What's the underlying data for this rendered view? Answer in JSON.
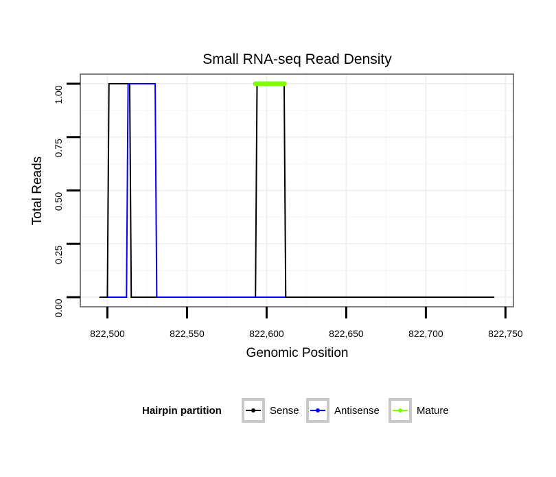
{
  "chart_data": {
    "type": "line",
    "title": "Small RNA-seq Read Density",
    "xlabel": "Genomic Position",
    "ylabel": "Total Reads",
    "xlim": [
      822483,
      822755
    ],
    "ylim": [
      -0.045,
      1.045
    ],
    "x_ticks": [
      822500,
      822550,
      822600,
      822650,
      822700,
      822750
    ],
    "x_tick_labels": [
      "822,500",
      "822,550",
      "822,600",
      "822,650",
      "822,700",
      "822,750"
    ],
    "y_ticks": [
      0,
      0.25,
      0.5,
      0.75,
      1
    ],
    "y_tick_labels": [
      "0.00",
      "0.25",
      "0.50",
      "0.75",
      "1.00"
    ],
    "grid": true,
    "legend_position": "bottom",
    "legend_title": "Hairpin partition",
    "series": [
      {
        "name": "Sense",
        "color": "#000000",
        "points": [
          [
            822495,
            0
          ],
          [
            822500,
            0
          ],
          [
            822501,
            1
          ],
          [
            822514,
            1
          ],
          [
            822515,
            0
          ],
          [
            822593,
            0
          ],
          [
            822594,
            1
          ],
          [
            822611,
            1
          ],
          [
            822612,
            0
          ],
          [
            822743,
            0
          ]
        ]
      },
      {
        "name": "Antisense",
        "color": "#0000ff",
        "points": [
          [
            822500,
            0
          ],
          [
            822512,
            0
          ],
          [
            822513,
            1
          ],
          [
            822530,
            1
          ],
          [
            822531,
            0
          ],
          [
            822593,
            0
          ],
          [
            822612,
            0
          ]
        ]
      },
      {
        "name": "Mature",
        "color": "#7fff00",
        "points": [
          [
            822593,
            1
          ],
          [
            822611,
            1
          ]
        ]
      }
    ]
  }
}
